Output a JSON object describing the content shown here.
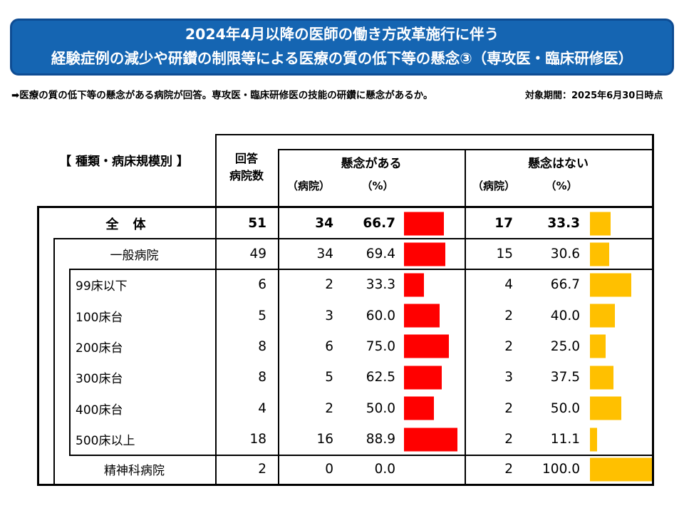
{
  "banner": {
    "line1": "2024年4月以降の医師の働き方改革施行に伴う",
    "line2": "経験症例の減少や研鑽の制限等による医療の質の低下等の懸念③（専攻医・臨床研修医）",
    "bg_color": "#1565b2",
    "border_color": "#0e4c93"
  },
  "note": {
    "text": "➡医療の質の低下等の懸念がある病院が回答。専攻医・臨床研修医の技能の研鑽に懸念があるか。",
    "period": "対象期間：2025年6月30日時点"
  },
  "table": {
    "category_header": "【 種類・病床規模別 】",
    "respondents_header_line1": "回答",
    "respondents_header_line2": "病院数",
    "concern": {
      "title": "懸念がある",
      "unit_hospitals": "（病院）",
      "unit_percent": "（%）",
      "bar_color": "#ff0000"
    },
    "no_concern": {
      "title": "懸念はない",
      "unit_hospitals": "（病院）",
      "unit_percent": "（%）",
      "bar_color": "#ffc000"
    },
    "rows": [
      {
        "label": "全　体",
        "level": 0,
        "bold": true,
        "respondents": "51",
        "concern_n": "34",
        "concern_pct": "66.7",
        "concern_val": 66.7,
        "no_concern_n": "17",
        "no_concern_pct": "33.3",
        "no_concern_val": 33.3
      },
      {
        "label": "一般病院",
        "level": 1,
        "bold": false,
        "respondents": "49",
        "concern_n": "34",
        "concern_pct": "69.4",
        "concern_val": 69.4,
        "no_concern_n": "15",
        "no_concern_pct": "30.6",
        "no_concern_val": 30.6
      },
      {
        "label": "99床以下",
        "level": 2,
        "bold": false,
        "respondents": "6",
        "concern_n": "2",
        "concern_pct": "33.3",
        "concern_val": 33.3,
        "no_concern_n": "4",
        "no_concern_pct": "66.7",
        "no_concern_val": 66.7
      },
      {
        "label": "100床台",
        "level": 2,
        "bold": false,
        "respondents": "5",
        "concern_n": "3",
        "concern_pct": "60.0",
        "concern_val": 60.0,
        "no_concern_n": "2",
        "no_concern_pct": "40.0",
        "no_concern_val": 40.0
      },
      {
        "label": "200床台",
        "level": 2,
        "bold": false,
        "respondents": "8",
        "concern_n": "6",
        "concern_pct": "75.0",
        "concern_val": 75.0,
        "no_concern_n": "2",
        "no_concern_pct": "25.0",
        "no_concern_val": 25.0
      },
      {
        "label": "300床台",
        "level": 2,
        "bold": false,
        "respondents": "8",
        "concern_n": "5",
        "concern_pct": "62.5",
        "concern_val": 62.5,
        "no_concern_n": "3",
        "no_concern_pct": "37.5",
        "no_concern_val": 37.5
      },
      {
        "label": "400床台",
        "level": 2,
        "bold": false,
        "respondents": "4",
        "concern_n": "2",
        "concern_pct": "50.0",
        "concern_val": 50.0,
        "no_concern_n": "2",
        "no_concern_pct": "50.0",
        "no_concern_val": 50.0
      },
      {
        "label": "500床以上",
        "level": 2,
        "bold": false,
        "respondents": "18",
        "concern_n": "16",
        "concern_pct": "88.9",
        "concern_val": 88.9,
        "no_concern_n": "2",
        "no_concern_pct": "11.1",
        "no_concern_val": 11.1
      },
      {
        "label": "精神科病院",
        "level": 1,
        "bold": false,
        "respondents": "2",
        "concern_n": "0",
        "concern_pct": "0.0",
        "concern_val": 0.0,
        "no_concern_n": "2",
        "no_concern_pct": "100.0",
        "no_concern_val": 100.0
      }
    ]
  },
  "chart_data": {
    "type": "table",
    "title": "2024年4月以降の医師の働き方改革施行に伴う経験症例の減少や研鑽の制限等による医療の質の低下等の懸念③（専攻医・臨床研修医）",
    "subtitle": "対象期間：2025年6月30日時点",
    "categories": [
      "全体",
      "一般病院",
      "99床以下",
      "100床台",
      "200床台",
      "300床台",
      "400床台",
      "500床以上",
      "精神科病院"
    ],
    "respondents": [
      51,
      49,
      6,
      5,
      8,
      8,
      4,
      18,
      2
    ],
    "series": [
      {
        "name": "懸念がある（病院）",
        "values": [
          34,
          34,
          2,
          3,
          6,
          5,
          2,
          16,
          0
        ]
      },
      {
        "name": "懸念がある（%）",
        "values": [
          66.7,
          69.4,
          33.3,
          60.0,
          75.0,
          62.5,
          50.0,
          88.9,
          0.0
        ]
      },
      {
        "name": "懸念はない（病院）",
        "values": [
          17,
          15,
          4,
          2,
          2,
          3,
          2,
          2,
          2
        ]
      },
      {
        "name": "懸念はない（%）",
        "values": [
          33.3,
          30.6,
          66.7,
          40.0,
          25.0,
          37.5,
          50.0,
          11.1,
          100.0
        ]
      }
    ],
    "bar_colors": {
      "懸念がある": "#ff0000",
      "懸念はない": "#ffc000"
    },
    "xlim_percent": [
      0,
      100
    ]
  }
}
